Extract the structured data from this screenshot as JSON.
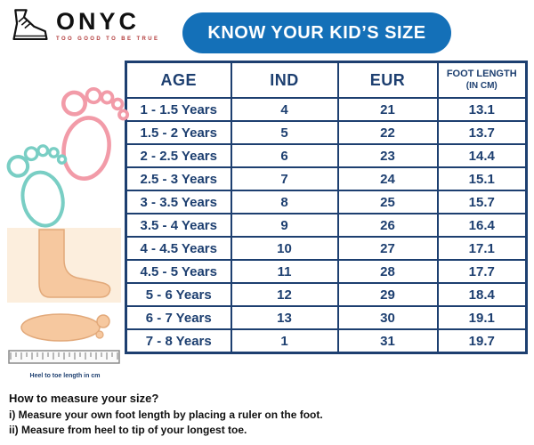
{
  "logo": {
    "name": "ONYC",
    "tagline": "TOO GOOD TO BE TRUE"
  },
  "banner": {
    "title": "KNOW YOUR KID’S SIZE"
  },
  "table": {
    "headers": [
      {
        "label": "AGE"
      },
      {
        "label": "IND"
      },
      {
        "label": "EUR"
      },
      {
        "label": "FOOT LENGTH",
        "sub": "(IN CM)"
      }
    ],
    "rows": [
      {
        "age": "1 - 1.5 Years",
        "ind": "4",
        "eur": "21",
        "foot_cm": "13.1"
      },
      {
        "age": "1.5 - 2 Years",
        "ind": "5",
        "eur": "22",
        "foot_cm": "13.7"
      },
      {
        "age": "2 - 2.5 Years",
        "ind": "6",
        "eur": "23",
        "foot_cm": "14.4"
      },
      {
        "age": "2.5 - 3 Years",
        "ind": "7",
        "eur": "24",
        "foot_cm": "15.1"
      },
      {
        "age": "3 - 3.5 Years",
        "ind": "8",
        "eur": "25",
        "foot_cm": "15.7"
      },
      {
        "age": "3.5 - 4 Years",
        "ind": "9",
        "eur": "26",
        "foot_cm": "16.4"
      },
      {
        "age": "4 - 4.5 Years",
        "ind": "10",
        "eur": "27",
        "foot_cm": "17.1"
      },
      {
        "age": "4.5 - 5 Years",
        "ind": "11",
        "eur": "28",
        "foot_cm": "17.7"
      },
      {
        "age": "5 - 6 Years",
        "ind": "12",
        "eur": "29",
        "foot_cm": "18.4"
      },
      {
        "age": "6 - 7 Years",
        "ind": "13",
        "eur": "30",
        "foot_cm": "19.1"
      },
      {
        "age": "7 - 8 Years",
        "ind": "1",
        "eur": "31",
        "foot_cm": "19.7"
      }
    ]
  },
  "chart_data": {
    "type": "table",
    "title": "KNOW YOUR KID’S SIZE",
    "columns": [
      "AGE",
      "IND",
      "EUR",
      "FOOT LENGTH (IN CM)"
    ],
    "rows": [
      [
        "1 - 1.5 Years",
        4,
        21,
        13.1
      ],
      [
        "1.5 - 2 Years",
        5,
        22,
        13.7
      ],
      [
        "2 - 2.5 Years",
        6,
        23,
        14.4
      ],
      [
        "2.5 - 3 Years",
        7,
        24,
        15.1
      ],
      [
        "3 - 3.5 Years",
        8,
        25,
        15.7
      ],
      [
        "3.5 - 4 Years",
        9,
        26,
        16.4
      ],
      [
        "4 - 4.5 Years",
        10,
        27,
        17.1
      ],
      [
        "4.5 - 5 Years",
        11,
        28,
        17.7
      ],
      [
        "5 - 6 Years",
        12,
        29,
        18.4
      ],
      [
        "6 - 7 Years",
        13,
        30,
        19.1
      ],
      [
        "7 - 8 Years",
        1,
        31,
        19.7
      ]
    ]
  },
  "illustration": {
    "caption": "Heel to toe length in cm"
  },
  "instructions": {
    "title": "How to measure your size?",
    "step_i": "i) Measure your own foot length by placing a ruler on the foot.",
    "step_ii": "ii) Measure from heel to tip of your longest toe."
  },
  "colors": {
    "navy": "#1d3f70",
    "banner_blue": "#1470b8",
    "footprint_pink": "#f29ba8",
    "footprint_teal": "#79cec4",
    "skin": "#f6c89f"
  }
}
